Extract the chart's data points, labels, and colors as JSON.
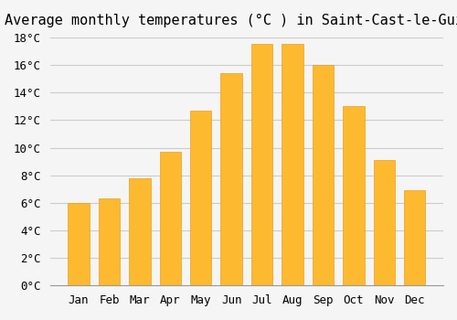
{
  "title": "Average monthly temperatures (°C ) in Saint-Cast-le-Guildo",
  "months": [
    "Jan",
    "Feb",
    "Mar",
    "Apr",
    "May",
    "Jun",
    "Jul",
    "Aug",
    "Sep",
    "Oct",
    "Nov",
    "Dec"
  ],
  "values": [
    6.0,
    6.3,
    7.8,
    9.7,
    12.7,
    15.4,
    17.5,
    17.5,
    16.0,
    13.0,
    9.1,
    6.9
  ],
  "bar_color": "#FDB930",
  "bar_edge_color": "#E8A020",
  "background_color": "#F5F5F5",
  "grid_color": "#CCCCCC",
  "title_fontsize": 11,
  "tick_label_fontsize": 9,
  "ylim": [
    0,
    18
  ],
  "yticks": [
    0,
    2,
    4,
    6,
    8,
    10,
    12,
    14,
    16,
    18
  ]
}
